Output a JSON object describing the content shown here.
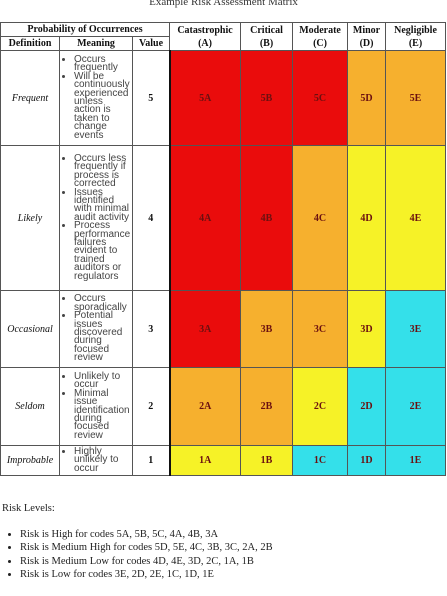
{
  "title": "Example Risk Assessment Matrix",
  "probability_header": "Probability of Occurrences",
  "sub_headers": {
    "definition": "Definition",
    "meaning": "Meaning",
    "value": "Value"
  },
  "severity_columns": [
    {
      "name": "Catastrophic",
      "code": "(A)"
    },
    {
      "name": "Critical",
      "code": "(B)"
    },
    {
      "name": "Moderate",
      "code": "(C)"
    },
    {
      "name": "Minor",
      "code": "(D)"
    },
    {
      "name": "Negligible",
      "code": "(E)"
    }
  ],
  "rows": [
    {
      "definition": "Frequent",
      "value": "5",
      "meaning": [
        "Occurs frequently",
        "Will be continuously experienced unless action is taken to change events"
      ],
      "cells": [
        "5A",
        "5B",
        "5C",
        "5D",
        "5E"
      ]
    },
    {
      "definition": "Likely",
      "value": "4",
      "meaning": [
        "Occurs less frequently if process is corrected",
        "Issues identified with minimal audit activity",
        "Process performance failures evident to trained auditors or regulators"
      ],
      "cells": [
        "4A",
        "4B",
        "4C",
        "4D",
        "4E"
      ]
    },
    {
      "definition": "Occasional",
      "value": "3",
      "meaning": [
        "Occurs sporadically",
        "Potential issues discovered during focused review"
      ],
      "cells": [
        "3A",
        "3B",
        "3C",
        "3D",
        "3E"
      ]
    },
    {
      "definition": "Seldom",
      "value": "2",
      "meaning": [
        "Unlikely to occur",
        "Minimal issue identification during focused review"
      ],
      "cells": [
        "2A",
        "2B",
        "2C",
        "2D",
        "2E"
      ]
    },
    {
      "definition": "Improbable",
      "value": "1",
      "meaning": [
        "Highly unlikely to occur"
      ],
      "cells": [
        "1A",
        "1B",
        "1C",
        "1D",
        "1E"
      ]
    }
  ],
  "colors": {
    "high": "#ea0c0c",
    "medium_high": "#f6b02e",
    "medium_low": "#f6f227",
    "low": "#34e0ea"
  },
  "risk_levels": {
    "heading": "Risk Levels:",
    "items": [
      "Risk is High for codes 5A, 5B, 5C, 4A, 4B, 3A",
      "Risk is Medium High for codes 5D, 5E, 4C, 3B, 3C, 2A, 2B",
      "Risk is Medium Low for codes 4D, 4E, 3D, 2C, 1A, 1B",
      "Risk is Low for codes 3E, 2D, 2E, 1C, 1D, 1E"
    ]
  }
}
